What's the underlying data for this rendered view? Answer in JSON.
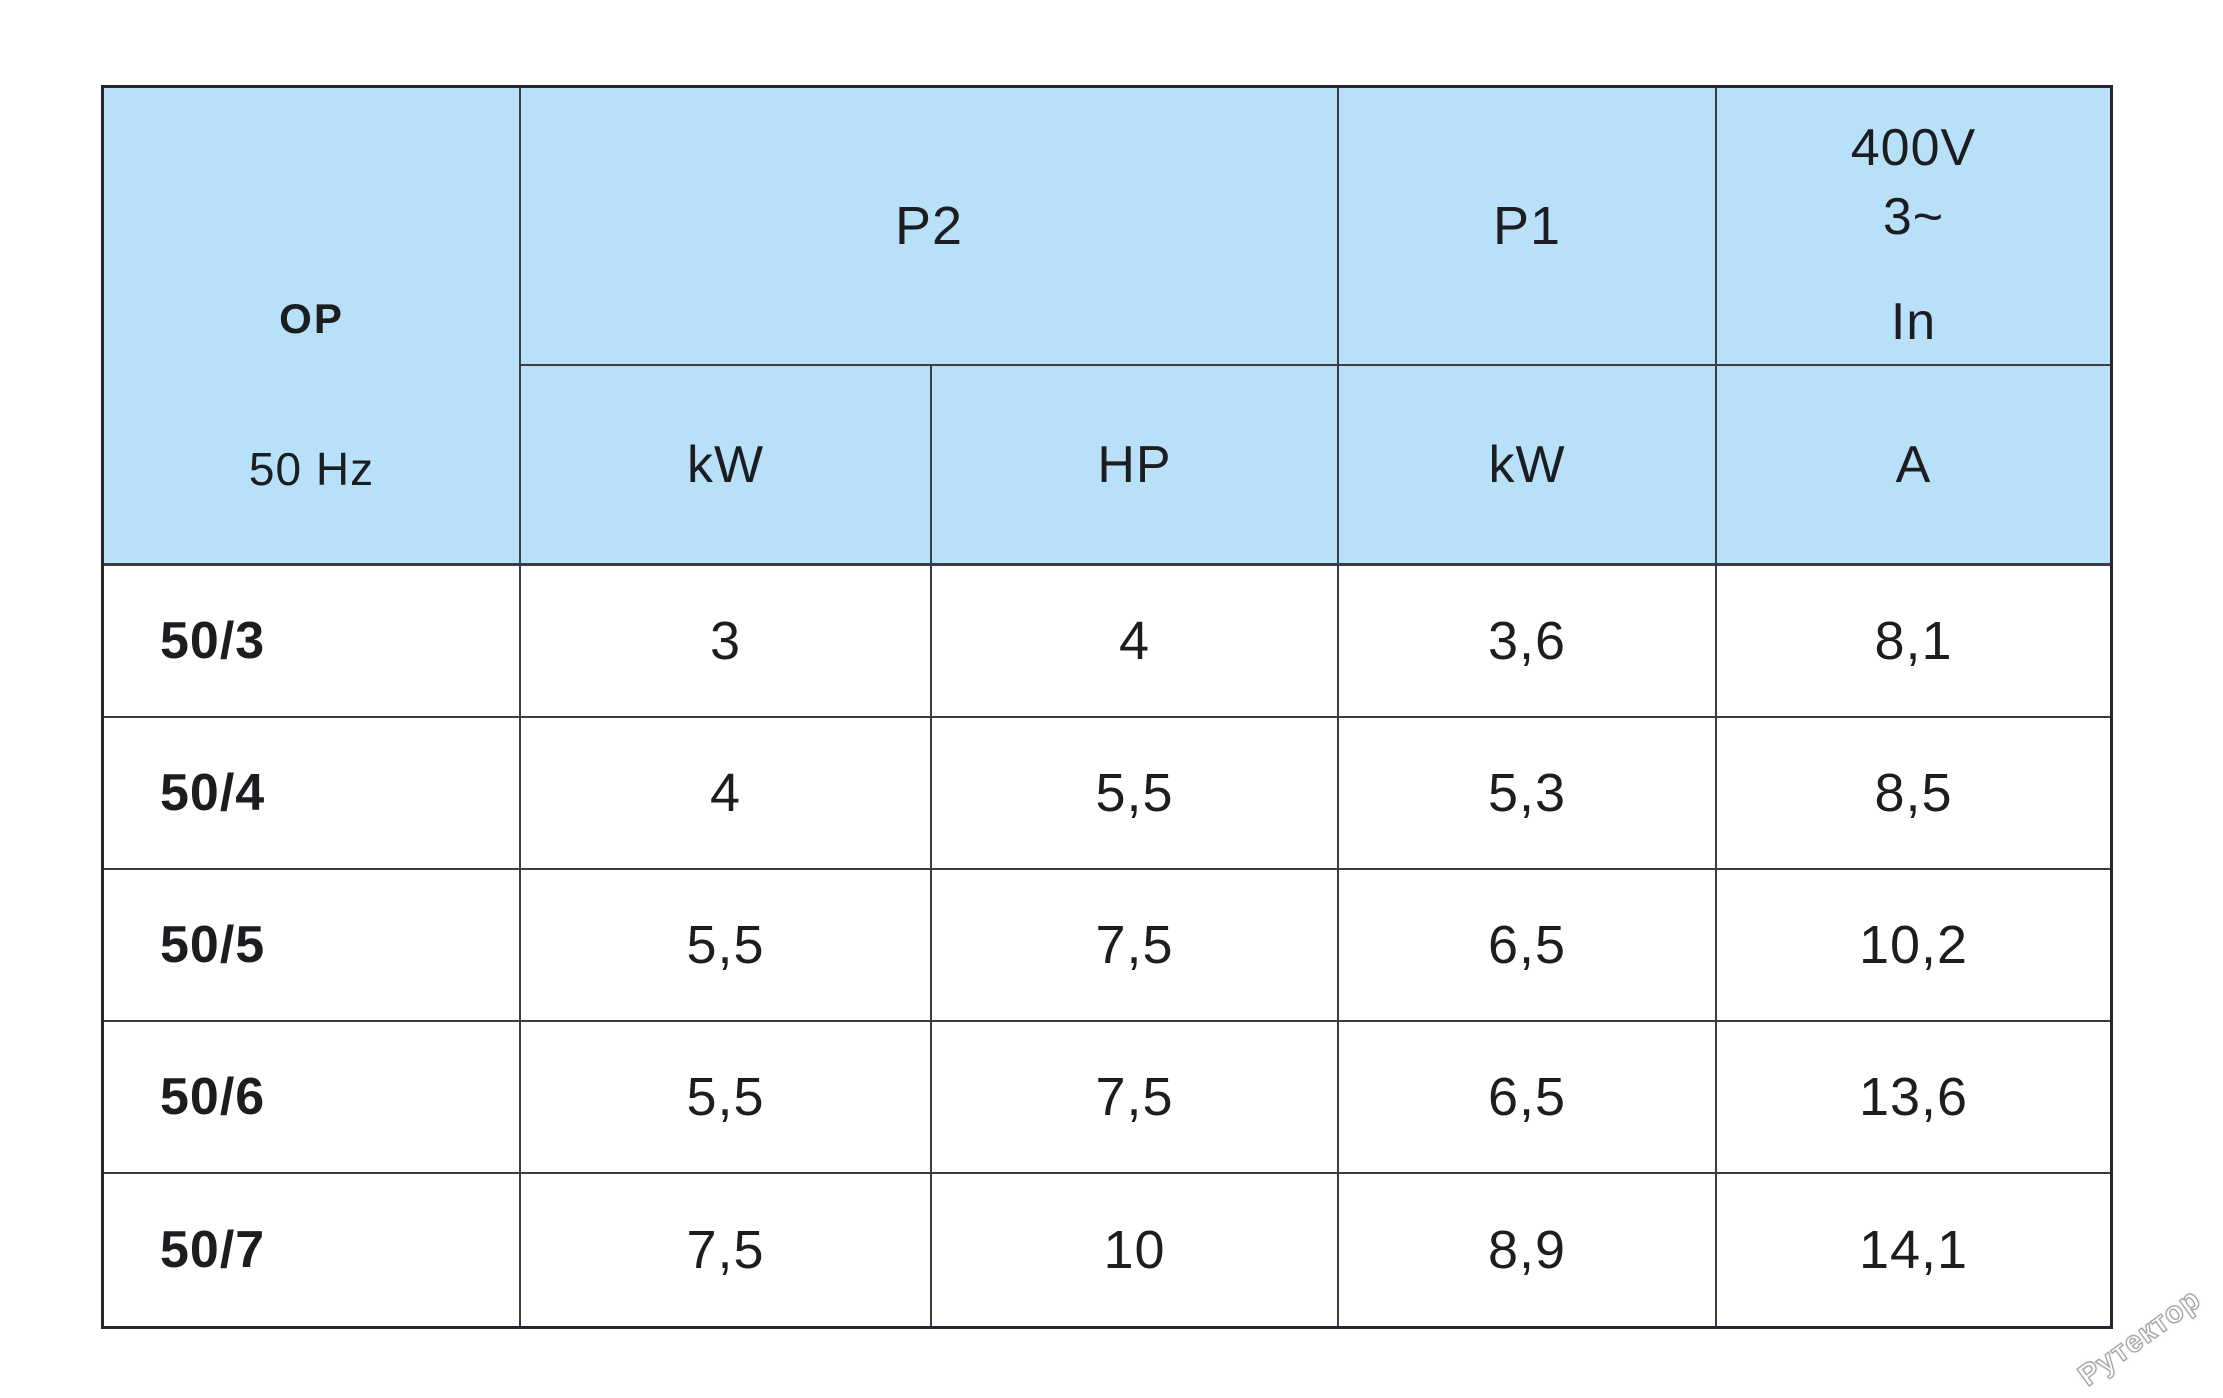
{
  "chart_data": {
    "type": "table",
    "header": {
      "row_group_label": "OP",
      "frequency": "50 Hz",
      "p2_group": "P2",
      "p1_group": "P1",
      "voltage": "400V",
      "phase": "3~",
      "current_symbol": "In",
      "p2_kw_unit": "kW",
      "p2_hp_unit": "HP",
      "p1_kw_unit": "kW",
      "current_unit": "A"
    },
    "rows": [
      {
        "model": "50/3",
        "p2_kw": "3",
        "p2_hp": "4",
        "p1_kw": "3,6",
        "in_a": "8,1"
      },
      {
        "model": "50/4",
        "p2_kw": "4",
        "p2_hp": "5,5",
        "p1_kw": "5,3",
        "in_a": "8,5"
      },
      {
        "model": "50/5",
        "p2_kw": "5,5",
        "p2_hp": "7,5",
        "p1_kw": "6,5",
        "in_a": "10,2"
      },
      {
        "model": "50/6",
        "p2_kw": "5,5",
        "p2_hp": "7,5",
        "p1_kw": "6,5",
        "in_a": "13,6"
      },
      {
        "model": "50/7",
        "p2_kw": "7,5",
        "p2_hp": "10",
        "p1_kw": "8,9",
        "in_a": "14,1"
      }
    ],
    "layout": {
      "header_bg": "#b8e1f9",
      "grid_line": "#3a3d43",
      "outer_border": "#24272d",
      "legend_position": "none",
      "grid": "on"
    }
  },
  "watermark": {
    "text": "Рутектор"
  }
}
